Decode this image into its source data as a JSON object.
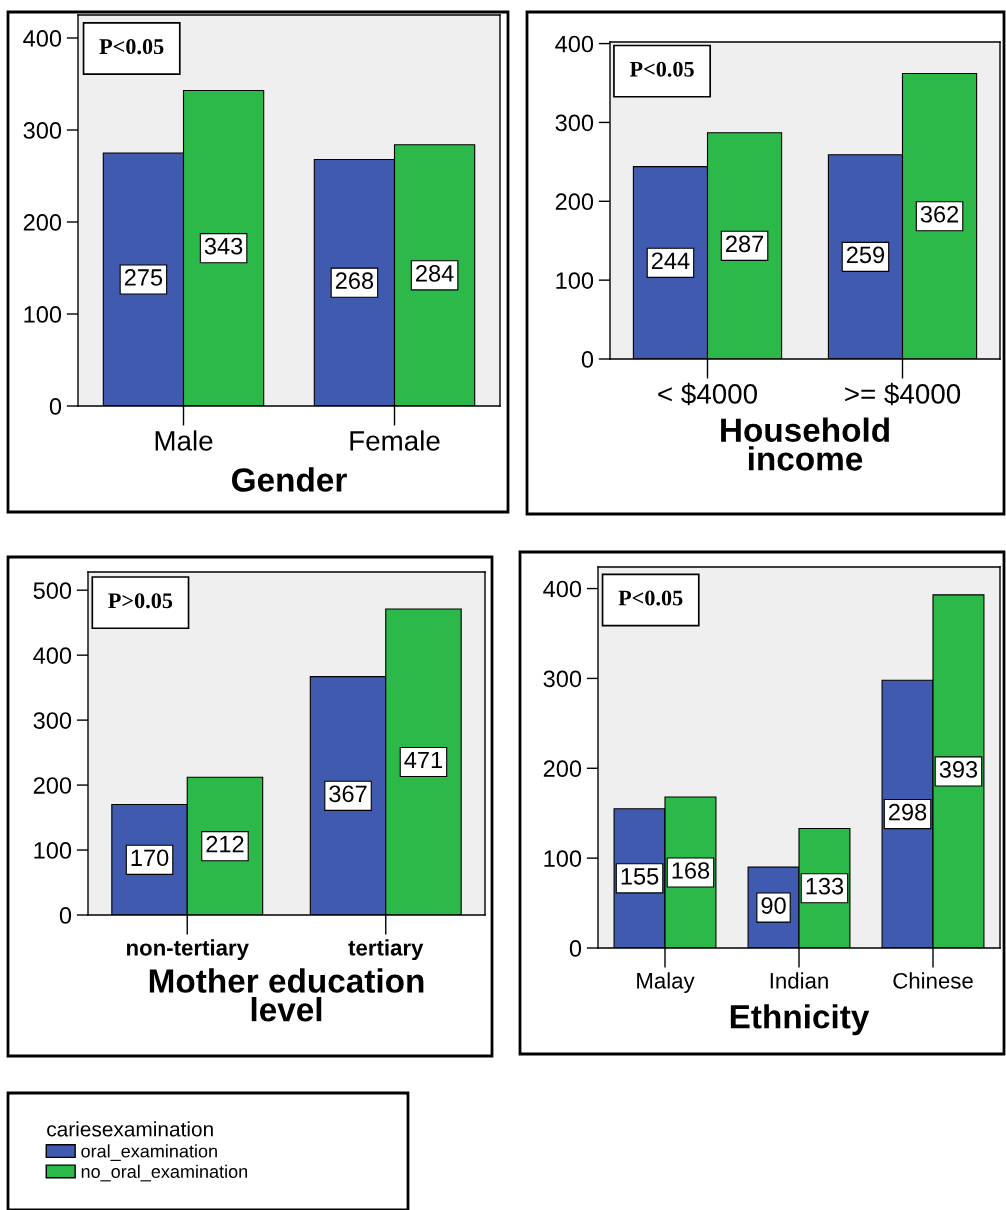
{
  "chart_data": [
    {
      "type": "bar",
      "xlabel": "Gender",
      "categories": [
        "Male",
        "Female"
      ],
      "ylim": [
        0,
        425
      ],
      "yticks": [
        0,
        100,
        200,
        300,
        400
      ],
      "data_labels": true,
      "legend": "bottom left",
      "legend_title": "cariesexamination",
      "annotations": [
        "P<0.05"
      ],
      "series": [
        {
          "name": "oral_examination",
          "color": "#3f5aae",
          "values": [
            275,
            268
          ]
        },
        {
          "name": "no_oral_examination",
          "color": "#2db84a",
          "values": [
            343,
            284
          ]
        }
      ]
    },
    {
      "type": "bar",
      "xlabel": "Household income",
      "categories": [
        "< $4000",
        ">= $4000"
      ],
      "ylim": [
        0,
        402
      ],
      "yticks": [
        0,
        100,
        200,
        300,
        400
      ],
      "data_labels": true,
      "annotations": [
        "P<0.05"
      ],
      "series": [
        {
          "color": "#3f5aae",
          "values": [
            244,
            259
          ]
        },
        {
          "color": "#2db84a",
          "values": [
            287,
            362
          ]
        }
      ]
    },
    {
      "type": "bar",
      "xlabel": "Mother education level",
      "categories": [
        "non-tertiary",
        "tertiary"
      ],
      "ylim": [
        0,
        528
      ],
      "yticks": [
        0,
        100,
        200,
        300,
        400,
        500
      ],
      "data_labels": true,
      "annotations": [
        "P>0.05"
      ],
      "series": [
        {
          "color": "#3f5aae",
          "values": [
            170,
            367
          ]
        },
        {
          "color": "#2db84a",
          "values": [
            212,
            471
          ]
        }
      ]
    },
    {
      "type": "bar",
      "xlabel": "Ethnicity",
      "categories": [
        "Malay",
        "Indian",
        "Chinese"
      ],
      "ylim": [
        0,
        424
      ],
      "yticks": [
        0,
        100,
        200,
        300,
        400
      ],
      "data_labels": true,
      "annotations": [
        "P<0.05"
      ],
      "series": [
        {
          "color": "#3f5aae",
          "values": [
            155,
            90,
            298
          ]
        },
        {
          "color": "#2db84a",
          "values": [
            168,
            133,
            393
          ]
        }
      ]
    }
  ]
}
